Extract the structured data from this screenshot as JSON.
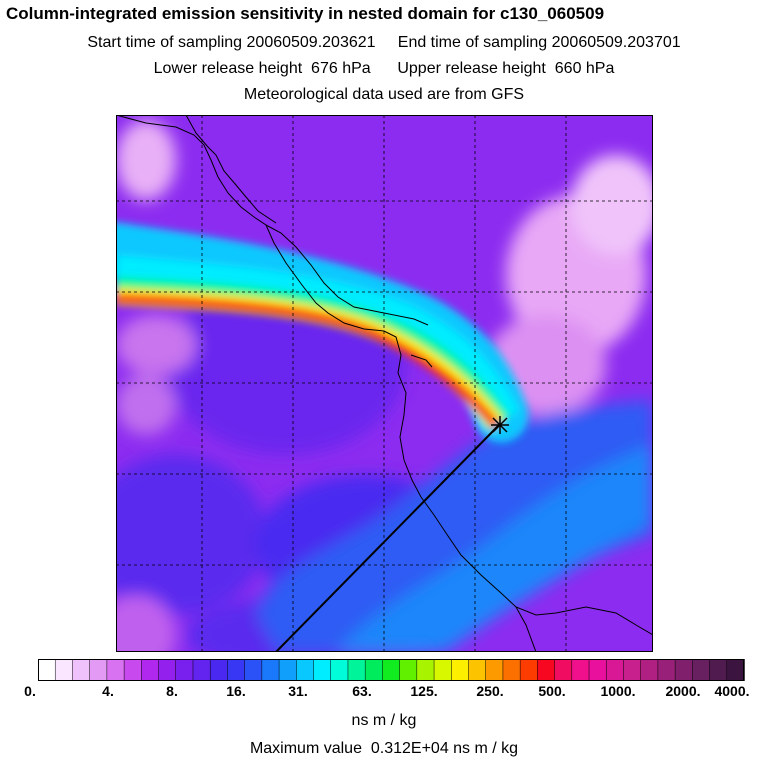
{
  "header": {
    "title": "Column-integrated emission sensitivity in nested domain for c130_060509",
    "sampling_line": "Start time of sampling 20060509.203621     End time of sampling 20060509.203701",
    "release_line": "Lower release height  676 hPa      Upper release height  660 hPa",
    "met_line": "Meteorological data used are from GFS"
  },
  "map": {
    "content": "column-integrated emission sensitivity field",
    "grid": true,
    "receptor_marker": "star"
  },
  "colorbar": {
    "ticks": [
      "0.",
      "4.",
      "8.",
      "16.",
      "31.",
      "63.",
      "125.",
      "250.",
      "500.",
      "1000.",
      "2000.",
      "4000."
    ],
    "colors": [
      "#ffffff",
      "#fbe6ff",
      "#f0c2fb",
      "#e39af5",
      "#d872f0",
      "#c84aee",
      "#b028ee",
      "#9420ee",
      "#7a20ee",
      "#6224ee",
      "#4a28f0",
      "#3838f4",
      "#2a52f6",
      "#1a78fa",
      "#10a0fc",
      "#08c8fe",
      "#00ecff",
      "#00fcd8",
      "#00f49a",
      "#00ec5c",
      "#10ec20",
      "#60f000",
      "#a8f400",
      "#d8f800",
      "#fcf000",
      "#fcc400",
      "#fc9a00",
      "#fc7000",
      "#fc3c00",
      "#f80820",
      "#f00c60",
      "#f0108c",
      "#e8109c",
      "#d81894",
      "#c8208c",
      "#b02082",
      "#982078",
      "#80206c",
      "#682060",
      "#501c50",
      "#3c1440"
    ],
    "unit": "ns m / kg"
  },
  "footer": {
    "max_value": "Maximum value  0.312E+04 ns m / kg"
  }
}
